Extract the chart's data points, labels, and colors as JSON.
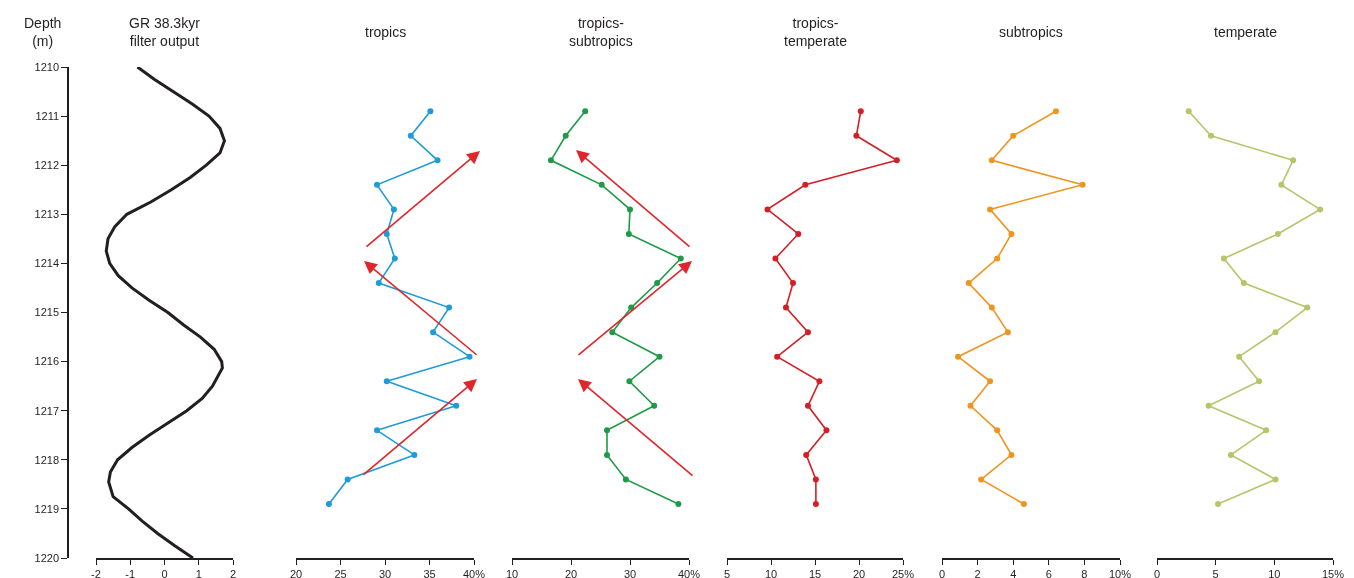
{
  "chart_data": [
    {
      "type": "line",
      "title": "GR 38.3kyr\nfilter output",
      "ylabel": "Depth\n(m)",
      "xlim": [
        -2,
        2
      ],
      "xticks": [
        -2,
        -1,
        0,
        1,
        2
      ],
      "ylim": [
        1220,
        1210
      ],
      "yticks": [
        1210,
        1211,
        1212,
        1213,
        1214,
        1215,
        1216,
        1217,
        1218,
        1219,
        1220
      ],
      "marker": "none",
      "line_style": "solid",
      "series": [
        {
          "color": "#231f20",
          "x": [
            -0.79,
            -0.3,
            0.25,
            0.8,
            1.3,
            1.62,
            1.75,
            1.62,
            1.22,
            0.75,
            0.2,
            -0.4,
            -1.1,
            -1.45,
            -1.65,
            -1.7,
            -1.6,
            -1.35,
            -0.95,
            -0.45,
            0.1,
            0.55,
            1.05,
            1.45,
            1.67,
            1.69,
            1.4,
            1.1,
            0.65,
            0.1,
            -0.45,
            -0.95,
            -1.37,
            -1.58,
            -1.63,
            -1.5,
            -1.05,
            -0.65,
            -0.2,
            0.3,
            0.83
          ],
          "values": [
            1210.0,
            1210.25,
            1210.5,
            1210.75,
            1211.0,
            1211.25,
            1211.5,
            1211.75,
            1212.0,
            1212.25,
            1212.5,
            1212.75,
            1213.0,
            1213.25,
            1213.5,
            1213.75,
            1214.0,
            1214.25,
            1214.5,
            1214.75,
            1215.0,
            1215.25,
            1215.5,
            1215.75,
            1216.0,
            1216.13,
            1216.5,
            1216.75,
            1217.0,
            1217.25,
            1217.5,
            1217.75,
            1218.0,
            1218.25,
            1218.45,
            1218.75,
            1219.0,
            1219.25,
            1219.5,
            1219.75,
            1220.0
          ]
        }
      ]
    },
    {
      "type": "line",
      "title": "tropics",
      "xlim": [
        20,
        40
      ],
      "xticks": [
        20,
        25,
        30,
        35,
        {
          "value": 40,
          "label": "40%"
        }
      ],
      "ylim": [
        1220,
        1210
      ],
      "yticks": [
        1210,
        1211,
        1212,
        1213,
        1214,
        1215,
        1216,
        1217,
        1218,
        1219,
        1220
      ],
      "tick_labels": "x",
      "marker": "circle",
      "line_style": "solid",
      "series": [
        {
          "color": "#1f9bd7",
          "x": [
            35.1,
            32.9,
            35.9,
            29.1,
            31.0,
            30.2,
            31.1,
            29.3,
            37.2,
            35.4,
            39.5,
            30.2,
            38.0,
            29.1,
            33.3,
            25.8,
            23.7
          ],
          "values": [
            1210.9,
            1211.4,
            1211.9,
            1212.4,
            1212.9,
            1213.4,
            1213.9,
            1214.4,
            1214.9,
            1215.4,
            1215.9,
            1216.4,
            1216.9,
            1217.4,
            1217.9,
            1218.4,
            1218.9
          ]
        }
      ]
    },
    {
      "type": "line",
      "title": "tropics-\nsubtropics",
      "xlim": [
        10,
        40
      ],
      "xticks": [
        10,
        20,
        30,
        {
          "value": 40,
          "label": "40%"
        }
      ],
      "ylim": [
        1220,
        1210
      ],
      "yticks": [
        1210,
        1211,
        1212,
        1213,
        1214,
        1215,
        1216,
        1217,
        1218,
        1219,
        1220
      ],
      "tick_labels": "x",
      "marker": "circle",
      "line_style": "solid",
      "series": [
        {
          "color": "#1e9a48",
          "x": [
            22.4,
            19.1,
            16.6,
            25.2,
            30.0,
            29.8,
            38.6,
            34.6,
            30.2,
            27.0,
            35.0,
            29.9,
            34.1,
            26.1,
            26.1,
            29.3,
            38.2
          ],
          "values": [
            1210.9,
            1211.4,
            1211.9,
            1212.4,
            1212.9,
            1213.4,
            1213.9,
            1214.4,
            1214.9,
            1215.4,
            1215.9,
            1216.4,
            1216.9,
            1217.4,
            1217.9,
            1218.4,
            1218.9
          ]
        }
      ]
    },
    {
      "type": "line",
      "title": "tropics-\ntemperate",
      "xlim": [
        5,
        25
      ],
      "xticks": [
        5,
        10,
        15,
        20,
        {
          "value": 25,
          "label": "25%"
        }
      ],
      "ylim": [
        1220,
        1210
      ],
      "yticks": [
        1210,
        1211,
        1212,
        1213,
        1214,
        1215,
        1216,
        1217,
        1218,
        1219,
        1220
      ],
      "tick_labels": "x",
      "marker": "circle",
      "line_style": "solid",
      "series": [
        {
          "color": "#d41f26",
          "x": [
            20.2,
            19.7,
            24.3,
            13.9,
            9.6,
            13.1,
            10.5,
            12.5,
            11.7,
            14.2,
            10.7,
            15.5,
            14.2,
            16.3,
            14.0,
            15.1,
            15.1
          ],
          "values": [
            1210.9,
            1211.4,
            1211.9,
            1212.4,
            1212.9,
            1213.4,
            1213.9,
            1214.4,
            1214.9,
            1215.4,
            1215.9,
            1216.4,
            1216.9,
            1217.4,
            1217.9,
            1218.4,
            1218.9
          ]
        }
      ]
    },
    {
      "type": "line",
      "title": "subtropics",
      "xlim": [
        0,
        10
      ],
      "xticks": [
        0,
        2,
        4,
        6,
        8,
        {
          "value": 10,
          "label": "10%"
        }
      ],
      "ylim": [
        1220,
        1210
      ],
      "yticks": [
        1210,
        1211,
        1212,
        1213,
        1214,
        1215,
        1216,
        1217,
        1218,
        1219,
        1220
      ],
      "tick_labels": "x",
      "marker": "circle",
      "line_style": "solid",
      "series": [
        {
          "color": "#ee951f",
          "x": [
            6.4,
            4.0,
            2.8,
            7.9,
            2.7,
            3.9,
            3.1,
            1.5,
            2.8,
            3.7,
            0.9,
            2.7,
            1.6,
            3.1,
            3.9,
            2.2,
            4.6
          ],
          "values": [
            1210.9,
            1211.4,
            1211.9,
            1212.4,
            1212.9,
            1213.4,
            1213.9,
            1214.4,
            1214.9,
            1215.4,
            1215.9,
            1216.4,
            1216.9,
            1217.4,
            1217.9,
            1218.4,
            1218.9
          ]
        }
      ]
    },
    {
      "type": "line",
      "title": "temperate",
      "xlim": [
        0,
        15
      ],
      "xticks": [
        0,
        5,
        10,
        {
          "value": 15,
          "label": "15%"
        }
      ],
      "ylim": [
        1220,
        1210
      ],
      "yticks": [
        1210,
        1211,
        1212,
        1213,
        1214,
        1215,
        1216,
        1217,
        1218,
        1219,
        1220
      ],
      "tick_labels": "x",
      "marker": "circle",
      "line_style": "solid",
      "series": [
        {
          "color": "#b3c66a",
          "x": [
            2.7,
            4.6,
            11.6,
            10.6,
            13.9,
            10.3,
            5.7,
            7.4,
            12.8,
            10.1,
            7.0,
            8.7,
            4.4,
            9.3,
            6.3,
            10.1,
            5.2
          ],
          "values": [
            1210.9,
            1211.4,
            1211.9,
            1212.4,
            1212.9,
            1213.4,
            1213.9,
            1214.4,
            1214.9,
            1215.4,
            1215.9,
            1216.4,
            1216.9,
            1217.4,
            1217.9,
            1218.4,
            1218.9
          ]
        }
      ]
    }
  ]
}
